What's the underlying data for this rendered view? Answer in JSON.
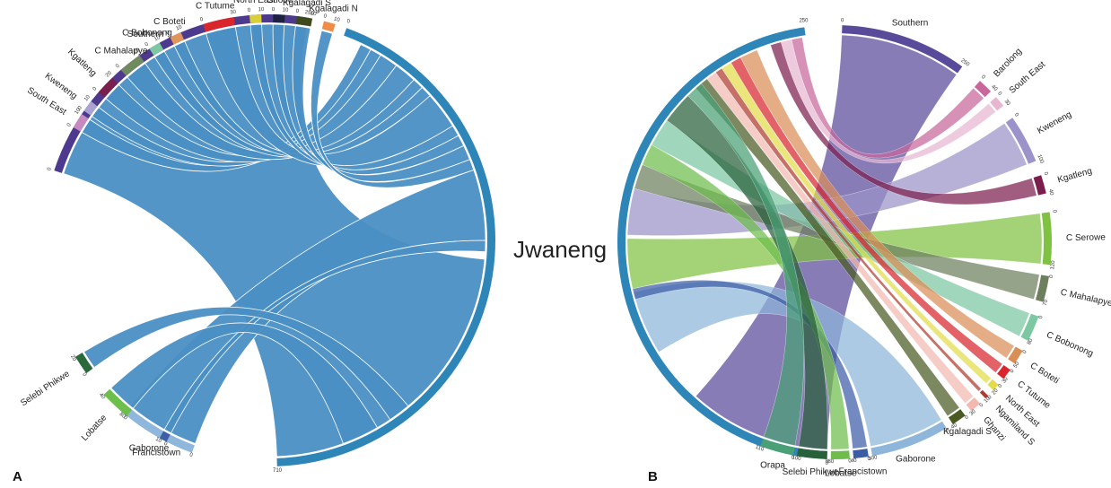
{
  "center_title": "Jwaneng",
  "diagrams": [
    {
      "panel_label": "A",
      "hub": {
        "name": "Jwaneng",
        "color": "#2e86b8",
        "tick_labels": [
          "0",
          "710"
        ]
      },
      "ribbon_color": "#4a8fc4",
      "segments": [
        {
          "name": "Southern",
          "color": "#4d3a8e",
          "tick_labels": [
            "0",
            "250"
          ]
        },
        {
          "name": "South East",
          "color": "#c78ac0",
          "tick_labels": [
            "0",
            "10"
          ]
        },
        {
          "name": "Kweneng",
          "color": "#a9a2d2",
          "tick_labels": [
            "0",
            "10"
          ]
        },
        {
          "name": "Kgatleng",
          "color": "#7a1f4e",
          "tick_labels": [
            "0",
            "20"
          ]
        },
        {
          "name": "C Mahalapye",
          "color": "#6f8a5e",
          "tick_labels": [
            "0",
            "20"
          ]
        },
        {
          "name": "C Bobonong",
          "color": "#7dc8a0",
          "tick_labels": [
            "0",
            "10"
          ]
        },
        {
          "name": "C Boteti",
          "color": "#e0955a",
          "tick_labels": [
            "0",
            "10"
          ]
        },
        {
          "name": "C Tutume",
          "color": "#d8262c",
          "tick_labels": [
            "0",
            "30"
          ]
        },
        {
          "name": "North East",
          "color": "#d8cf3a",
          "tick_labels": [
            "0",
            "10"
          ]
        },
        {
          "name": "Chobe",
          "color": "#1c2240",
          "tick_labels": [
            "0",
            "10"
          ]
        },
        {
          "name": "Kgalagadi S",
          "color": "#3e4a1e",
          "tick_labels": [
            "0",
            "10"
          ]
        },
        {
          "name": "Kgalagadi N",
          "color": "#ef8c4a",
          "tick_labels": [
            "0",
            "10"
          ]
        },
        {
          "name": "Gaborone",
          "color": "#8fb7dc",
          "tick_labels": [
            "0",
            "80"
          ]
        },
        {
          "name": "Francistown",
          "color": "#3c5fa8",
          "tick_labels": [
            "0",
            "10"
          ]
        },
        {
          "name": "Lobatse",
          "color": "#6dbf4b",
          "tick_labels": [
            "0",
            "40"
          ]
        },
        {
          "name": "Selebi Phikwe",
          "color": "#2a6a3a",
          "tick_labels": [
            "0",
            "20"
          ]
        }
      ]
    },
    {
      "panel_label": "B",
      "hub": {
        "name": "Jwaneng",
        "color": "#2e86b8",
        "tick_labels": [
          "0",
          "250"
        ]
      },
      "segments": [
        {
          "name": "Southern",
          "color": "#5a4a9a",
          "tick_labels": [
            "0",
            "250"
          ]
        },
        {
          "name": "Barolong",
          "color": "#c7679a",
          "tick_labels": [
            "0",
            "40"
          ]
        },
        {
          "name": "South East",
          "color": "#e8b6d1",
          "tick_labels": [
            "0",
            "30"
          ]
        },
        {
          "name": "Kweneng",
          "color": "#9b93c9",
          "tick_labels": [
            "0",
            "100"
          ]
        },
        {
          "name": "Kgatleng",
          "color": "#7b1e4d",
          "tick_labels": [
            "0",
            "40"
          ]
        },
        {
          "name": "C Serowe",
          "color": "#7fc241",
          "tick_labels": [
            "0",
            "120"
          ]
        },
        {
          "name": "C Mahalapye",
          "color": "#6e7f5e",
          "tick_labels": [
            "0",
            "70"
          ]
        },
        {
          "name": "C Bobonong",
          "color": "#7cc8a2",
          "tick_labels": [
            "0",
            "80"
          ]
        },
        {
          "name": "C Boteti",
          "color": "#d98e56",
          "tick_labels": [
            "0",
            "50"
          ]
        },
        {
          "name": "C Tutume",
          "color": "#d8262c",
          "tick_labels": [
            "0",
            "30"
          ]
        },
        {
          "name": "North East",
          "color": "#e2dc4a",
          "tick_labels": [
            "0",
            "20"
          ]
        },
        {
          "name": "Ngamiland S",
          "color": "#b03a2e",
          "tick_labels": [
            "0",
            "10"
          ]
        },
        {
          "name": "Ghanzi",
          "color": "#f3b8b0",
          "tick_labels": [
            "0",
            "30"
          ]
        },
        {
          "name": "Kgalagadi S",
          "color": "#4a5a22",
          "tick_labels": [
            "0",
            "40"
          ]
        },
        {
          "name": "Gaborone",
          "color": "#8db6da",
          "tick_labels": [
            "0",
            "300"
          ]
        },
        {
          "name": "Francistown",
          "color": "#3b5da6",
          "tick_labels": [
            "0",
            "40"
          ]
        },
        {
          "name": "Lobatse",
          "color": "#6ebc4c",
          "tick_labels": [
            "0",
            "80"
          ]
        },
        {
          "name": "Selebi Phikwe",
          "color": "#28603a",
          "tick_labels": [
            "0",
            "100"
          ]
        },
        {
          "name": "Orapa",
          "color": "#4aa076",
          "tick_labels": [
            "0",
            "110"
          ]
        }
      ]
    }
  ]
}
